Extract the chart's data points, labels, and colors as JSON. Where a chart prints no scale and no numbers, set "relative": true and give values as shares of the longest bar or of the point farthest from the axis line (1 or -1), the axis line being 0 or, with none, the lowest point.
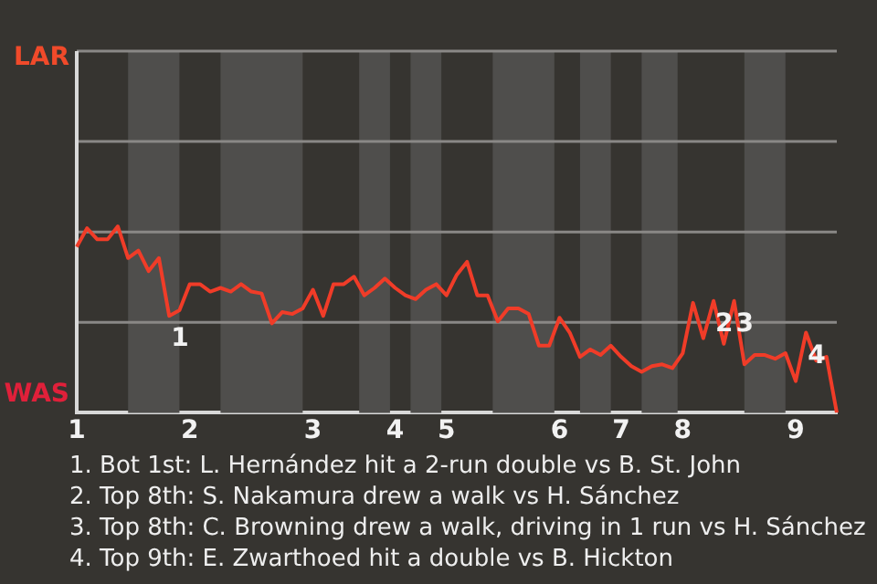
{
  "chart_data": {
    "type": "line",
    "categories": [
      "1",
      null,
      null,
      null,
      null,
      null,
      null,
      null,
      null,
      null,
      null,
      "2",
      null,
      null,
      null,
      null,
      null,
      null,
      null,
      null,
      null,
      null,
      null,
      "3",
      null,
      null,
      null,
      null,
      null,
      null,
      null,
      "4",
      null,
      null,
      null,
      null,
      "5",
      null,
      null,
      null,
      null,
      null,
      null,
      null,
      null,
      null,
      null,
      "6",
      null,
      null,
      null,
      null,
      null,
      "7",
      null,
      null,
      null,
      null,
      null,
      "8",
      null,
      null,
      null,
      null,
      null,
      null,
      null,
      null,
      null,
      null,
      "9",
      null,
      null,
      null,
      null
    ],
    "series": [
      {
        "color": "#f03c28",
        "values": [
          0.89,
          0.99,
          0.93,
          0.93,
          1,
          0.83,
          0.87,
          0.76,
          0.83,
          0.52,
          0.55,
          0.69,
          0.69,
          0.65,
          0.67,
          0.65,
          0.69,
          0.65,
          0.64,
          0.48,
          0.54,
          0.53,
          0.56,
          0.66,
          0.52,
          0.69,
          0.69,
          0.73,
          0.63,
          0.67,
          0.72,
          0.67,
          0.63,
          0.61,
          0.66,
          0.69,
          0.63,
          0.74,
          0.81,
          0.63,
          0.63,
          0.49,
          0.56,
          0.56,
          0.53,
          0.36,
          0.36,
          0.51,
          0.43,
          0.3,
          0.34,
          0.31,
          0.36,
          0.3,
          0.25,
          0.22,
          0.25,
          0.26,
          0.24,
          0.32,
          0.59,
          0.4,
          0.6,
          0.37,
          0.6,
          0.26,
          0.31,
          0.31,
          0.29,
          0.32,
          0.17,
          0.43,
          0.28,
          0.3,
          0
        ]
      }
    ],
    "relative": true,
    "ref_lines": [
      {
        "axis": "y",
        "value": 0.485,
        "color": "#8a8886"
      },
      {
        "axis": "y",
        "value": 0.97,
        "color": "#8a8886"
      },
      {
        "axis": "y",
        "value": 1.455,
        "color": "#8a8886"
      },
      {
        "axis": "y",
        "value": 1.94,
        "color": "#8a8886"
      }
    ],
    "annotations": [
      {
        "text": "1",
        "y": 0.52
      },
      {
        "text": "2",
        "y": 0.6
      },
      {
        "text": "3",
        "y": 0.6
      },
      {
        "text": "4",
        "y": 0.43
      },
      "LAR",
      "WAS",
      "1. Bot 1st: L. Hernández hit a 2-run double vs B. St. John",
      "2. Top 8th: S. Nakamura drew a walk vs H. Sánchez",
      "3. Top 8th: C. Browning drew a walk, driving in 1 run vs H. Sánchez",
      "4. Top 9th: E. Zwarthoed hit a double vs B. Hickton"
    ],
    "legend": false,
    "marker": "none"
  }
}
